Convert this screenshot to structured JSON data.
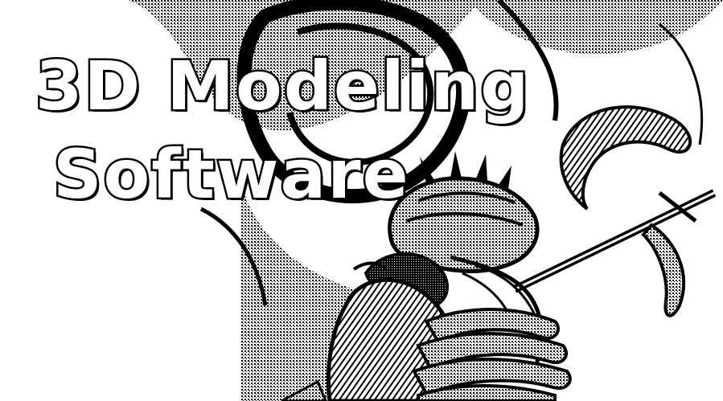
{
  "title": {
    "line1": "3D Modeling",
    "line2": "Software"
  },
  "colors": {
    "background": "#ffffff",
    "ink": "#000000",
    "shade": "#3a3a3a"
  },
  "illustration": {
    "icon": "armored-warrior-with-halberd-icon"
  }
}
